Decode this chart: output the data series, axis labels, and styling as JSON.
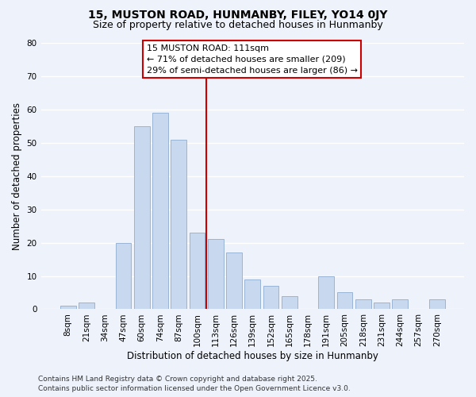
{
  "title": "15, MUSTON ROAD, HUNMANBY, FILEY, YO14 0JY",
  "subtitle": "Size of property relative to detached houses in Hunmanby",
  "xlabel": "Distribution of detached houses by size in Hunmanby",
  "ylabel": "Number of detached properties",
  "bar_labels": [
    "8sqm",
    "21sqm",
    "34sqm",
    "47sqm",
    "60sqm",
    "74sqm",
    "87sqm",
    "100sqm",
    "113sqm",
    "126sqm",
    "139sqm",
    "152sqm",
    "165sqm",
    "178sqm",
    "191sqm",
    "205sqm",
    "218sqm",
    "231sqm",
    "244sqm",
    "257sqm",
    "270sqm"
  ],
  "bar_values": [
    1,
    2,
    0,
    20,
    55,
    59,
    51,
    23,
    21,
    17,
    9,
    7,
    4,
    0,
    10,
    5,
    3,
    2,
    3,
    0,
    3
  ],
  "bar_color": "#c8d8ee",
  "bar_edge_color": "#9ab4d4",
  "highlight_index": 8,
  "vline_color": "#cc0000",
  "ylim": [
    0,
    80
  ],
  "yticks": [
    0,
    10,
    20,
    30,
    40,
    50,
    60,
    70,
    80
  ],
  "annotation_title": "15 MUSTON ROAD: 111sqm",
  "annotation_line1": "← 71% of detached houses are smaller (209)",
  "annotation_line2": "29% of semi-detached houses are larger (86) →",
  "annotation_box_color": "#ffffff",
  "annotation_border_color": "#cc0000",
  "footer_line1": "Contains HM Land Registry data © Crown copyright and database right 2025.",
  "footer_line2": "Contains public sector information licensed under the Open Government Licence v3.0.",
  "background_color": "#eef2fa",
  "grid_color": "#ffffff",
  "title_fontsize": 10,
  "subtitle_fontsize": 9,
  "axis_label_fontsize": 8.5,
  "tick_fontsize": 7.5,
  "annotation_fontsize": 8,
  "footer_fontsize": 6.5
}
